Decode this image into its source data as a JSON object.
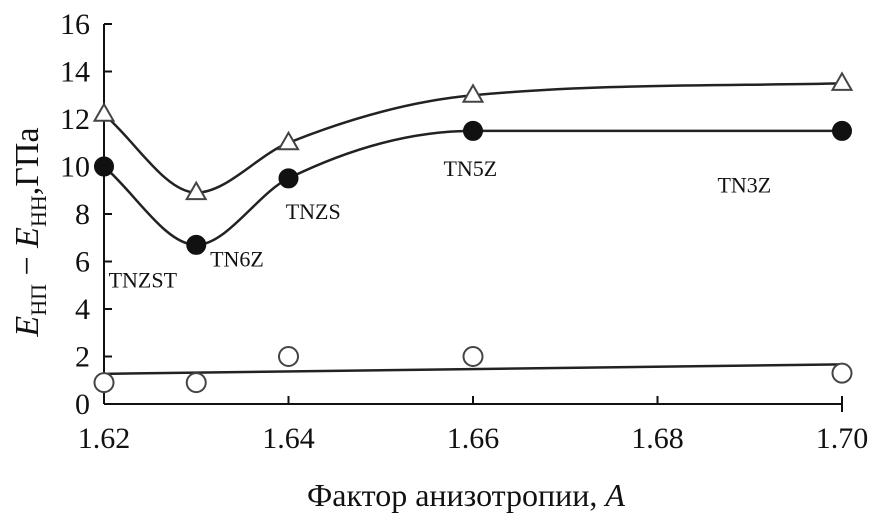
{
  "chart_data": {
    "type": "line",
    "xlabel": "Фактор анизотропии,",
    "xlabel_var": "A",
    "ylabel": {
      "E1": "E",
      "sub1": "НП",
      "minus": " − ",
      "E2": "E",
      "sub2": "НН",
      "unit": ",ГПа"
    },
    "xlim": [
      1.62,
      1.7
    ],
    "ylim": [
      0,
      16
    ],
    "xticks": [
      "1.62",
      "1.64",
      "1.66",
      "1.68",
      "1.70"
    ],
    "xtick_values": [
      1.62,
      1.64,
      1.66,
      1.68,
      1.7
    ],
    "yticks": [
      "0",
      "2",
      "4",
      "6",
      "8",
      "10",
      "12",
      "14",
      "16"
    ],
    "ytick_values": [
      0,
      2,
      4,
      6,
      8,
      10,
      12,
      14,
      16
    ],
    "grid": false,
    "series": [
      {
        "marker": "triangle-open",
        "x": [
          1.62,
          1.63,
          1.64,
          1.66,
          1.7
        ],
        "y": [
          12.2,
          8.9,
          11.0,
          13.0,
          13.5
        ]
      },
      {
        "marker": "circle-filled",
        "x": [
          1.62,
          1.63,
          1.64,
          1.66,
          1.7
        ],
        "y": [
          10.0,
          6.7,
          9.5,
          11.5,
          11.5
        ]
      },
      {
        "marker": "circle-open",
        "x": [
          1.62,
          1.63,
          1.64,
          1.66,
          1.7
        ],
        "y": [
          0.9,
          0.9,
          2.0,
          2.0,
          1.3
        ],
        "fit": "linear"
      }
    ],
    "annotations": [
      {
        "text": "TNZST",
        "x": 1.6205,
        "y": 4.9
      },
      {
        "text": "TN6Z",
        "x": 1.6315,
        "y": 5.8
      },
      {
        "text": "TNZS",
        "x": 1.6397,
        "y": 7.8
      },
      {
        "text": "TN5Z",
        "x": 1.6568,
        "y": 9.6
      },
      {
        "text": "TN3Z",
        "x": 1.6865,
        "y": 8.9
      }
    ]
  }
}
